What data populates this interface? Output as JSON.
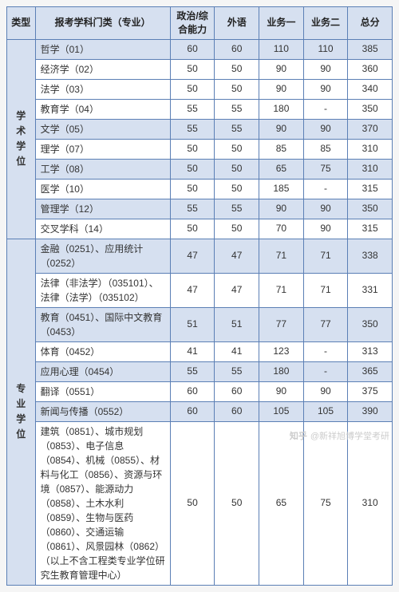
{
  "colors": {
    "border": "#5b7fb5",
    "header_bg": "#d6e0f0",
    "highlight_bg": "#d6e0f0",
    "text": "#333333",
    "watermark": "#cccccc"
  },
  "headers": {
    "type": "类型",
    "major": "报考学科门类（专业）",
    "politics": "政治/综合能力",
    "foreign": "外语",
    "biz1": "业务一",
    "biz2": "业务二",
    "total": "总分"
  },
  "groups": [
    {
      "label": "学术学位",
      "rows": [
        {
          "hl": true,
          "major": "哲学（01）",
          "s": [
            "60",
            "60",
            "110",
            "110",
            "385"
          ]
        },
        {
          "hl": false,
          "major": "经济学（02）",
          "s": [
            "50",
            "50",
            "90",
            "90",
            "360"
          ]
        },
        {
          "hl": false,
          "major": "法学（03）",
          "s": [
            "50",
            "50",
            "90",
            "90",
            "340"
          ]
        },
        {
          "hl": false,
          "major": "教育学（04）",
          "s": [
            "55",
            "55",
            "180",
            "-",
            "350"
          ]
        },
        {
          "hl": true,
          "major": "文学（05）",
          "s": [
            "55",
            "55",
            "90",
            "90",
            "370"
          ]
        },
        {
          "hl": false,
          "major": "理学（07）",
          "s": [
            "50",
            "50",
            "85",
            "85",
            "310"
          ]
        },
        {
          "hl": true,
          "major": "工学（08）",
          "s": [
            "50",
            "50",
            "65",
            "75",
            "310"
          ]
        },
        {
          "hl": false,
          "major": "医学（10）",
          "s": [
            "50",
            "50",
            "185",
            "-",
            "315"
          ]
        },
        {
          "hl": true,
          "major": "管理学（12）",
          "s": [
            "55",
            "55",
            "90",
            "90",
            "350"
          ]
        },
        {
          "hl": false,
          "major": "交叉学科（14）",
          "s": [
            "50",
            "50",
            "70",
            "90",
            "315"
          ]
        }
      ]
    },
    {
      "label": "专业学位",
      "rows": [
        {
          "hl": true,
          "major": "金融（0251）、应用统计（0252）",
          "s": [
            "47",
            "47",
            "71",
            "71",
            "338"
          ]
        },
        {
          "hl": false,
          "major": "法律（非法学）（035101）、法律（法学）（035102）",
          "s": [
            "47",
            "47",
            "71",
            "71",
            "331"
          ]
        },
        {
          "hl": true,
          "major": "教育（0451）、国际中文教育（0453）",
          "s": [
            "51",
            "51",
            "77",
            "77",
            "350"
          ]
        },
        {
          "hl": false,
          "major": "体育（0452）",
          "s": [
            "41",
            "41",
            "123",
            "-",
            "313"
          ]
        },
        {
          "hl": true,
          "major": "应用心理（0454）",
          "s": [
            "55",
            "55",
            "180",
            "-",
            "365"
          ]
        },
        {
          "hl": false,
          "major": "翻译（0551）",
          "s": [
            "60",
            "60",
            "90",
            "90",
            "375"
          ]
        },
        {
          "hl": true,
          "major": "新闻与传播（0552）",
          "s": [
            "60",
            "60",
            "105",
            "105",
            "390"
          ]
        },
        {
          "hl": false,
          "major": "建筑（0851）、城市规划（0853）、电子信息（0854）、机械（0855）、材料与化工（0856）、资源与环境（0857）、能源动力（0858）、土木水利（0859）、生物与医药（0860）、交通运输（0861）、风景园林（0862）（以上不含工程类专业学位研究生教育管理中心）",
          "s": [
            "50",
            "50",
            "65",
            "75",
            "310"
          ]
        }
      ]
    }
  ],
  "watermark": {
    "logo": "知乎",
    "text": "@新祥旭博学堂考研"
  }
}
